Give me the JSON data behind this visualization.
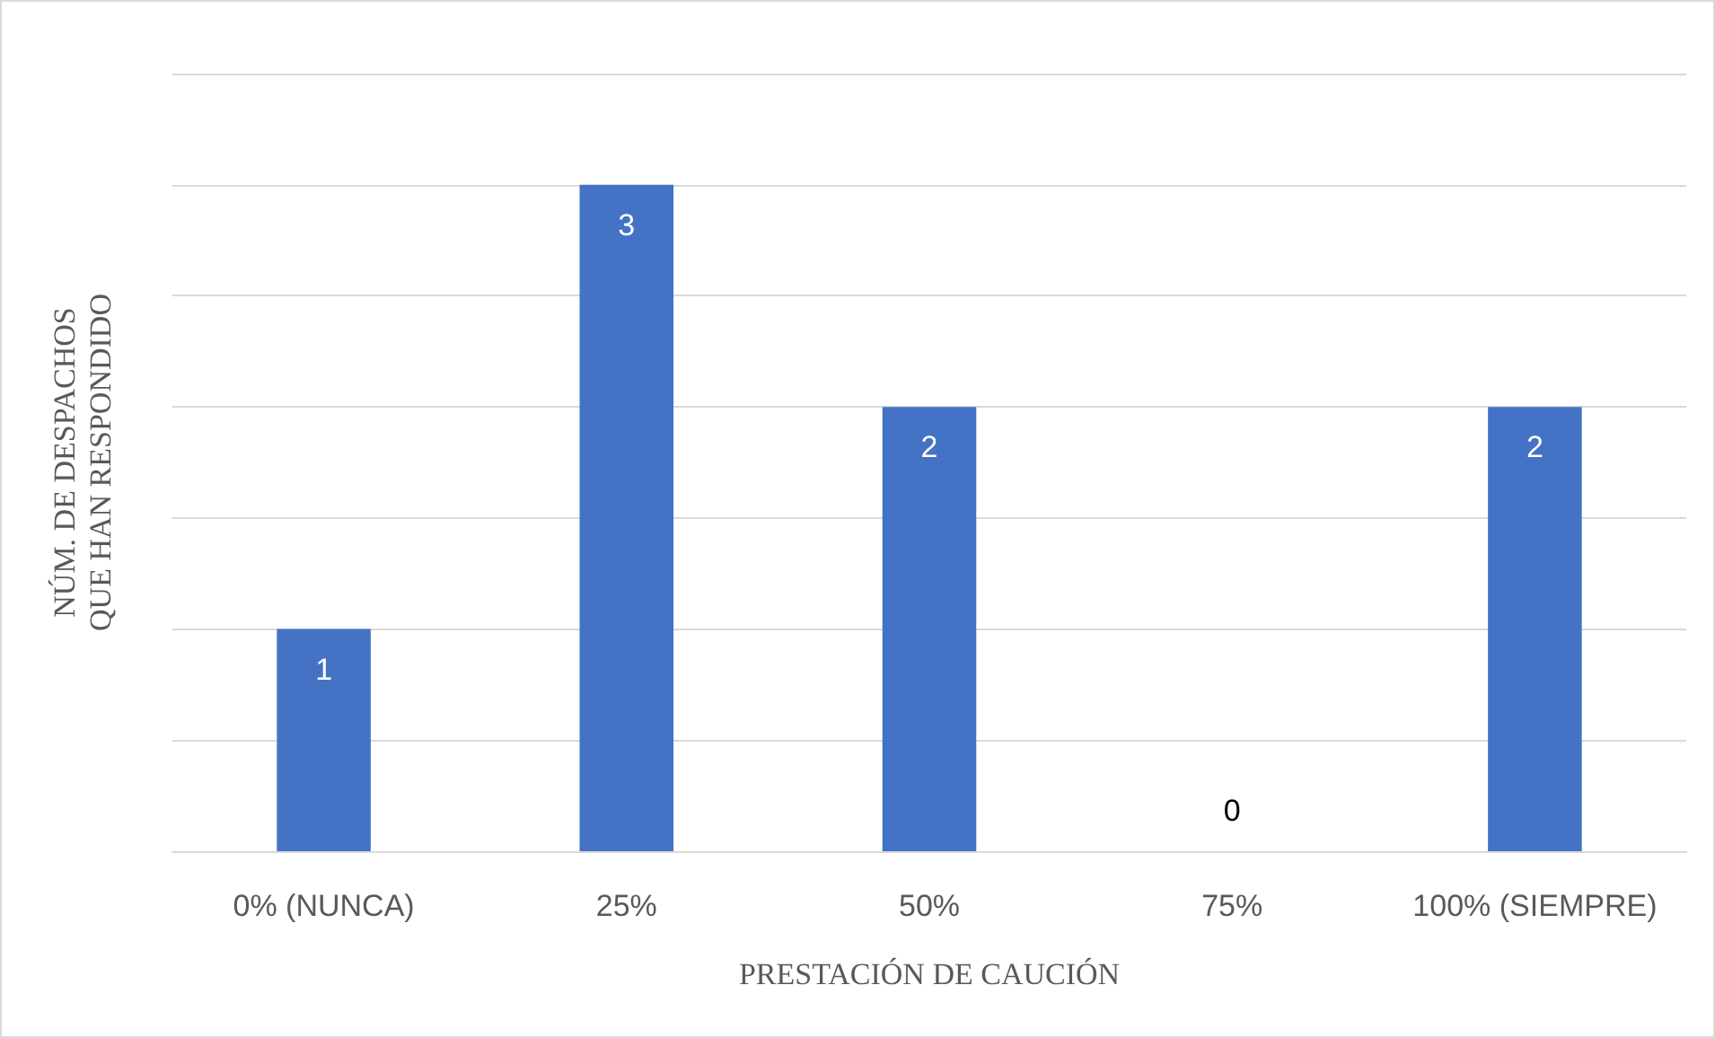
{
  "chart_data": {
    "type": "bar",
    "xlabel": "PRESTACIÓN DE CAUCIÓN",
    "ylabel": "NÚM. DE DESPACHOS\nQUE HAN RESPONDIDO",
    "categories": [
      "0% (NUNCA)",
      "25%",
      "50%",
      "75%",
      "100% (SIEMPRE)"
    ],
    "values": [
      1,
      3,
      2,
      0,
      2
    ],
    "color": "#4472c4",
    "data_labels": true,
    "ylim": [
      0,
      3.5
    ],
    "yticks": [
      {
        "value": 0,
        "label": null
      },
      {
        "value": 0.5,
        "label": null
      },
      {
        "value": 1,
        "label": null
      },
      {
        "value": 1.5,
        "label": null
      },
      {
        "value": 2,
        "label": null
      },
      {
        "value": 2.5,
        "label": null
      },
      {
        "value": 3,
        "label": null
      },
      {
        "value": 3.5,
        "label": null
      }
    ],
    "grid": "y",
    "tick_labels": "x"
  }
}
